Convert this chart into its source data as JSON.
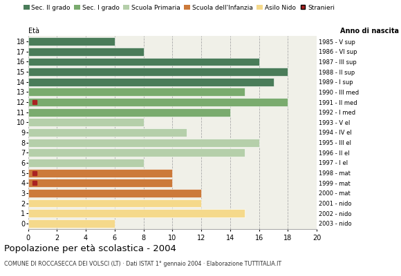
{
  "ages": [
    18,
    17,
    16,
    15,
    14,
    13,
    12,
    11,
    10,
    9,
    8,
    7,
    6,
    5,
    4,
    3,
    2,
    1,
    0
  ],
  "anno": [
    "1985 - V sup",
    "1986 - VI sup",
    "1987 - III sup",
    "1988 - II sup",
    "1989 - I sup",
    "1990 - III med",
    "1991 - II med",
    "1992 - I med",
    "1993 - V el",
    "1994 - IV el",
    "1995 - III el",
    "1996 - II el",
    "1997 - I el",
    "1998 - mat",
    "1999 - mat",
    "2000 - mat",
    "2001 - nido",
    "2002 - nido",
    "2003 - nido"
  ],
  "values": [
    6,
    8,
    16,
    18,
    17,
    15,
    18,
    14,
    8,
    11,
    16,
    15,
    8,
    10,
    10,
    12,
    12,
    15,
    6
  ],
  "stranieri": [
    0,
    0,
    0,
    0,
    0,
    0,
    1,
    0,
    0,
    0,
    0,
    0,
    0,
    1,
    1,
    0,
    0,
    0,
    0
  ],
  "colors": [
    "#4a7c59",
    "#4a7c59",
    "#4a7c59",
    "#4a7c59",
    "#4a7c59",
    "#7aab6e",
    "#7aab6e",
    "#7aab6e",
    "#b5cfaa",
    "#b5cfaa",
    "#b5cfaa",
    "#b5cfaa",
    "#b5cfaa",
    "#cc7a3a",
    "#cc7a3a",
    "#cc7a3a",
    "#f5d98b",
    "#f5d98b",
    "#f5d98b"
  ],
  "legend_labels": [
    "Sec. II grado",
    "Sec. I grado",
    "Scuola Primaria",
    "Scuola dell'Infanzia",
    "Asilo Nido",
    "Stranieri"
  ],
  "legend_colors": [
    "#4a7c59",
    "#7aab6e",
    "#b5cfaa",
    "#cc7a3a",
    "#f5d98b",
    "#aa2222"
  ],
  "title": "Popolazione per età scolastica - 2004",
  "subtitle": "COMUNE DI ROCCASECCA DEI VOLSCI (LT) · Dati ISTAT 1° gennaio 2004 · Elaborazione TUTTITALIA.IT",
  "eta_label": "Età",
  "anno_label": "Anno di nascita",
  "xlim": [
    0,
    20
  ],
  "xticks": [
    0,
    2,
    4,
    6,
    8,
    10,
    12,
    14,
    16,
    18,
    20
  ],
  "bar_height": 0.8,
  "stranieri_color": "#aa2222",
  "stranieri_size": 4,
  "bg_color": "#f0f0e8"
}
